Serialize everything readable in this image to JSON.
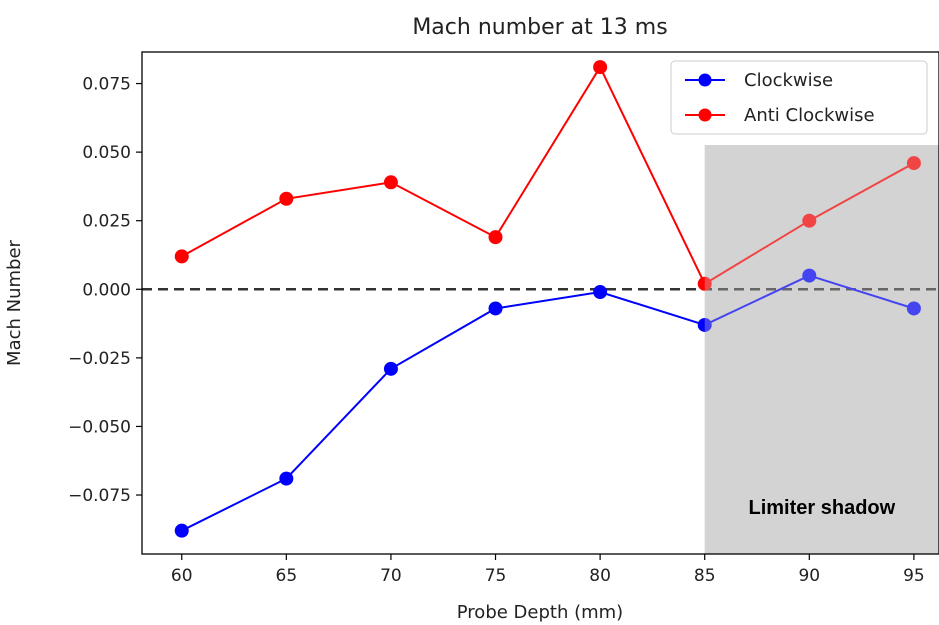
{
  "chart_data": {
    "type": "line",
    "title": "Mach number at 13 ms",
    "xlabel": "Probe Depth (mm)",
    "ylabel": "Mach Number",
    "x": [
      60,
      65,
      70,
      75,
      80,
      85,
      90,
      95
    ],
    "xticks": [
      60,
      65,
      70,
      75,
      80,
      85,
      90,
      95
    ],
    "yticks": [
      -0.075,
      -0.05,
      -0.025,
      0.0,
      0.025,
      0.05,
      0.075
    ],
    "ytick_labels": [
      "−0.075",
      "−0.050",
      "−0.025",
      "0.000",
      "0.025",
      "0.050",
      "0.075"
    ],
    "xlim": [
      58.1,
      96.2
    ],
    "ylim": [
      -0.0965,
      0.0865
    ],
    "grid": false,
    "legend_position": "top-right",
    "series": [
      {
        "name": "Clockwise",
        "color": "#0000ff",
        "values": [
          -0.088,
          -0.069,
          -0.029,
          -0.007,
          -0.001,
          -0.013,
          0.005,
          -0.007
        ]
      },
      {
        "name": "Anti Clockwise",
        "color": "#ff0000",
        "values": [
          0.012,
          0.033,
          0.039,
          0.019,
          0.081,
          0.002,
          0.025,
          0.046
        ]
      }
    ],
    "reference_line": {
      "y": 0.0,
      "style": "dashed",
      "color": "#333333"
    },
    "shaded_region": {
      "x_start": 85,
      "x_end": 96.2,
      "color": "#d3d3d3",
      "label": "Limiter shadow"
    }
  }
}
